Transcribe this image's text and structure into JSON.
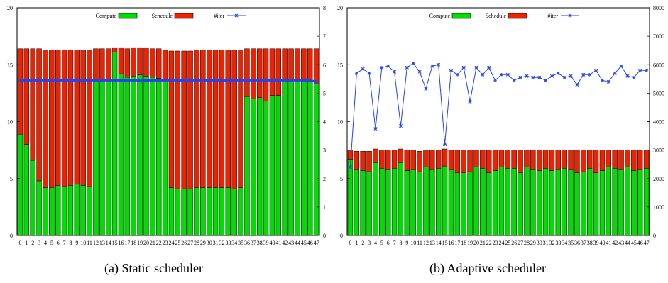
{
  "colors": {
    "compute": "#00dd00",
    "schedule": "#ee2200",
    "iter": "#2244ee",
    "frame": "#000000"
  },
  "legend": {
    "compute": "Compute",
    "schedule": "Schedule",
    "iter": "#iter"
  },
  "captions": {
    "a": "(a) Static scheduler",
    "b": "(b) Adaptive scheduler"
  },
  "chart_data": [
    {
      "type": "bar",
      "stacked": true,
      "categories": [
        "0",
        "1",
        "2",
        "3",
        "4",
        "5",
        "6",
        "7",
        "8",
        "9",
        "10",
        "11",
        "12",
        "13",
        "14",
        "15",
        "16",
        "17",
        "18",
        "19",
        "20",
        "21",
        "22",
        "23",
        "24",
        "25",
        "26",
        "27",
        "28",
        "29",
        "30",
        "31",
        "32",
        "33",
        "34",
        "35",
        "36",
        "37",
        "38",
        "39",
        "40",
        "41",
        "42",
        "43",
        "44",
        "45",
        "46",
        "47"
      ],
      "series": [
        {
          "name": "Compute",
          "values": [
            8.9,
            8.0,
            6.6,
            4.8,
            4.2,
            4.2,
            4.4,
            4.3,
            4.4,
            4.5,
            4.4,
            4.3,
            13.6,
            13.6,
            13.6,
            16.1,
            14.2,
            13.9,
            14.0,
            14.1,
            14.0,
            13.9,
            13.8,
            13.7,
            4.2,
            4.1,
            4.1,
            4.1,
            4.2,
            4.2,
            4.2,
            4.2,
            4.2,
            4.2,
            4.1,
            4.2,
            12.2,
            12.0,
            12.1,
            11.8,
            12.3,
            12.3,
            13.6,
            13.6,
            13.6,
            13.5,
            13.6,
            13.3
          ]
        },
        {
          "name": "Schedule",
          "values": [
            7.5,
            8.4,
            9.8,
            11.6,
            12.1,
            12.1,
            11.9,
            12.0,
            11.9,
            11.8,
            11.9,
            12.0,
            2.8,
            2.8,
            2.8,
            0.4,
            2.3,
            2.5,
            2.5,
            2.4,
            2.5,
            2.5,
            2.6,
            2.6,
            12.0,
            12.1,
            12.1,
            12.1,
            12.1,
            12.1,
            12.1,
            12.1,
            12.1,
            12.1,
            12.2,
            12.1,
            4.2,
            4.4,
            4.3,
            4.6,
            4.1,
            4.1,
            2.8,
            2.8,
            2.8,
            2.9,
            2.8,
            3.1
          ]
        },
        {
          "name": "#iter",
          "axis": "right",
          "values": [
            5.45,
            5.45,
            5.45,
            5.45,
            5.45,
            5.45,
            5.45,
            5.45,
            5.45,
            5.45,
            5.45,
            5.45,
            5.45,
            5.45,
            5.45,
            5.45,
            5.45,
            5.45,
            5.45,
            5.45,
            5.45,
            5.45,
            5.45,
            5.45,
            5.45,
            5.45,
            5.45,
            5.45,
            5.45,
            5.45,
            5.45,
            5.45,
            5.45,
            5.45,
            5.45,
            5.45,
            5.45,
            5.45,
            5.45,
            5.45,
            5.45,
            5.45,
            5.45,
            5.45,
            5.45,
            5.45,
            5.45,
            5.4
          ]
        }
      ],
      "ylim": [
        0,
        20
      ],
      "yticks": [
        0,
        5,
        10,
        15,
        20
      ],
      "y2lim": [
        0,
        8
      ],
      "y2ticks": [
        0,
        1,
        2,
        3,
        4,
        5,
        6,
        7,
        8
      ],
      "legend_position": "top"
    },
    {
      "type": "bar",
      "stacked": true,
      "categories": [
        "0",
        "1",
        "2",
        "3",
        "4",
        "5",
        "6",
        "7",
        "8",
        "9",
        "10",
        "11",
        "12",
        "13",
        "14",
        "15",
        "16",
        "17",
        "18",
        "19",
        "20",
        "21",
        "22",
        "23",
        "24",
        "25",
        "26",
        "27",
        "28",
        "29",
        "30",
        "31",
        "32",
        "33",
        "34",
        "35",
        "36",
        "37",
        "38",
        "39",
        "40",
        "41",
        "42",
        "43",
        "44",
        "45",
        "46",
        "47"
      ],
      "series": [
        {
          "name": "Compute",
          "values": [
            6.7,
            5.8,
            5.7,
            5.6,
            6.4,
            5.9,
            5.8,
            5.9,
            6.4,
            5.7,
            5.8,
            5.6,
            6.0,
            5.8,
            5.9,
            6.1,
            5.8,
            5.5,
            5.5,
            5.6,
            6.0,
            5.9,
            5.5,
            5.7,
            6.0,
            5.9,
            5.9,
            5.5,
            6.0,
            5.8,
            5.7,
            5.9,
            5.7,
            5.8,
            5.9,
            5.8,
            5.5,
            5.6,
            5.9,
            5.5,
            5.7,
            6.0,
            5.9,
            5.8,
            6.0,
            5.7,
            5.8,
            5.9
          ]
        },
        {
          "name": "Schedule",
          "values": [
            0.8,
            1.6,
            1.7,
            1.8,
            1.2,
            1.6,
            1.7,
            1.6,
            1.2,
            1.8,
            1.7,
            1.8,
            1.5,
            1.7,
            1.6,
            1.5,
            1.7,
            2.0,
            2.0,
            1.9,
            1.5,
            1.6,
            2.0,
            1.8,
            1.5,
            1.6,
            1.6,
            2.0,
            1.5,
            1.7,
            1.8,
            1.6,
            1.8,
            1.7,
            1.6,
            1.7,
            2.0,
            1.9,
            1.6,
            2.0,
            1.8,
            1.5,
            1.6,
            1.7,
            1.5,
            1.8,
            1.7,
            1.6
          ]
        },
        {
          "name": "#iter",
          "axis": "right",
          "values": [
            2400,
            5700,
            5850,
            5700,
            3750,
            5900,
            5950,
            5750,
            3850,
            5900,
            6050,
            5750,
            5150,
            5950,
            6000,
            3200,
            5800,
            5650,
            5900,
            4700,
            5900,
            5650,
            5900,
            5450,
            5650,
            5650,
            5450,
            5550,
            5600,
            5550,
            5550,
            5450,
            5600,
            5700,
            5550,
            5600,
            5300,
            5650,
            5650,
            5800,
            5450,
            5400,
            5700,
            5950,
            5600,
            5550,
            5800,
            5800
          ]
        }
      ],
      "ylim": [
        0,
        20
      ],
      "yticks": [
        0,
        5,
        10,
        15,
        20
      ],
      "y2lim": [
        0,
        8000
      ],
      "y2ticks": [
        0,
        1000,
        2000,
        3000,
        4000,
        5000,
        6000,
        7000,
        8000
      ],
      "legend_position": "top"
    }
  ]
}
